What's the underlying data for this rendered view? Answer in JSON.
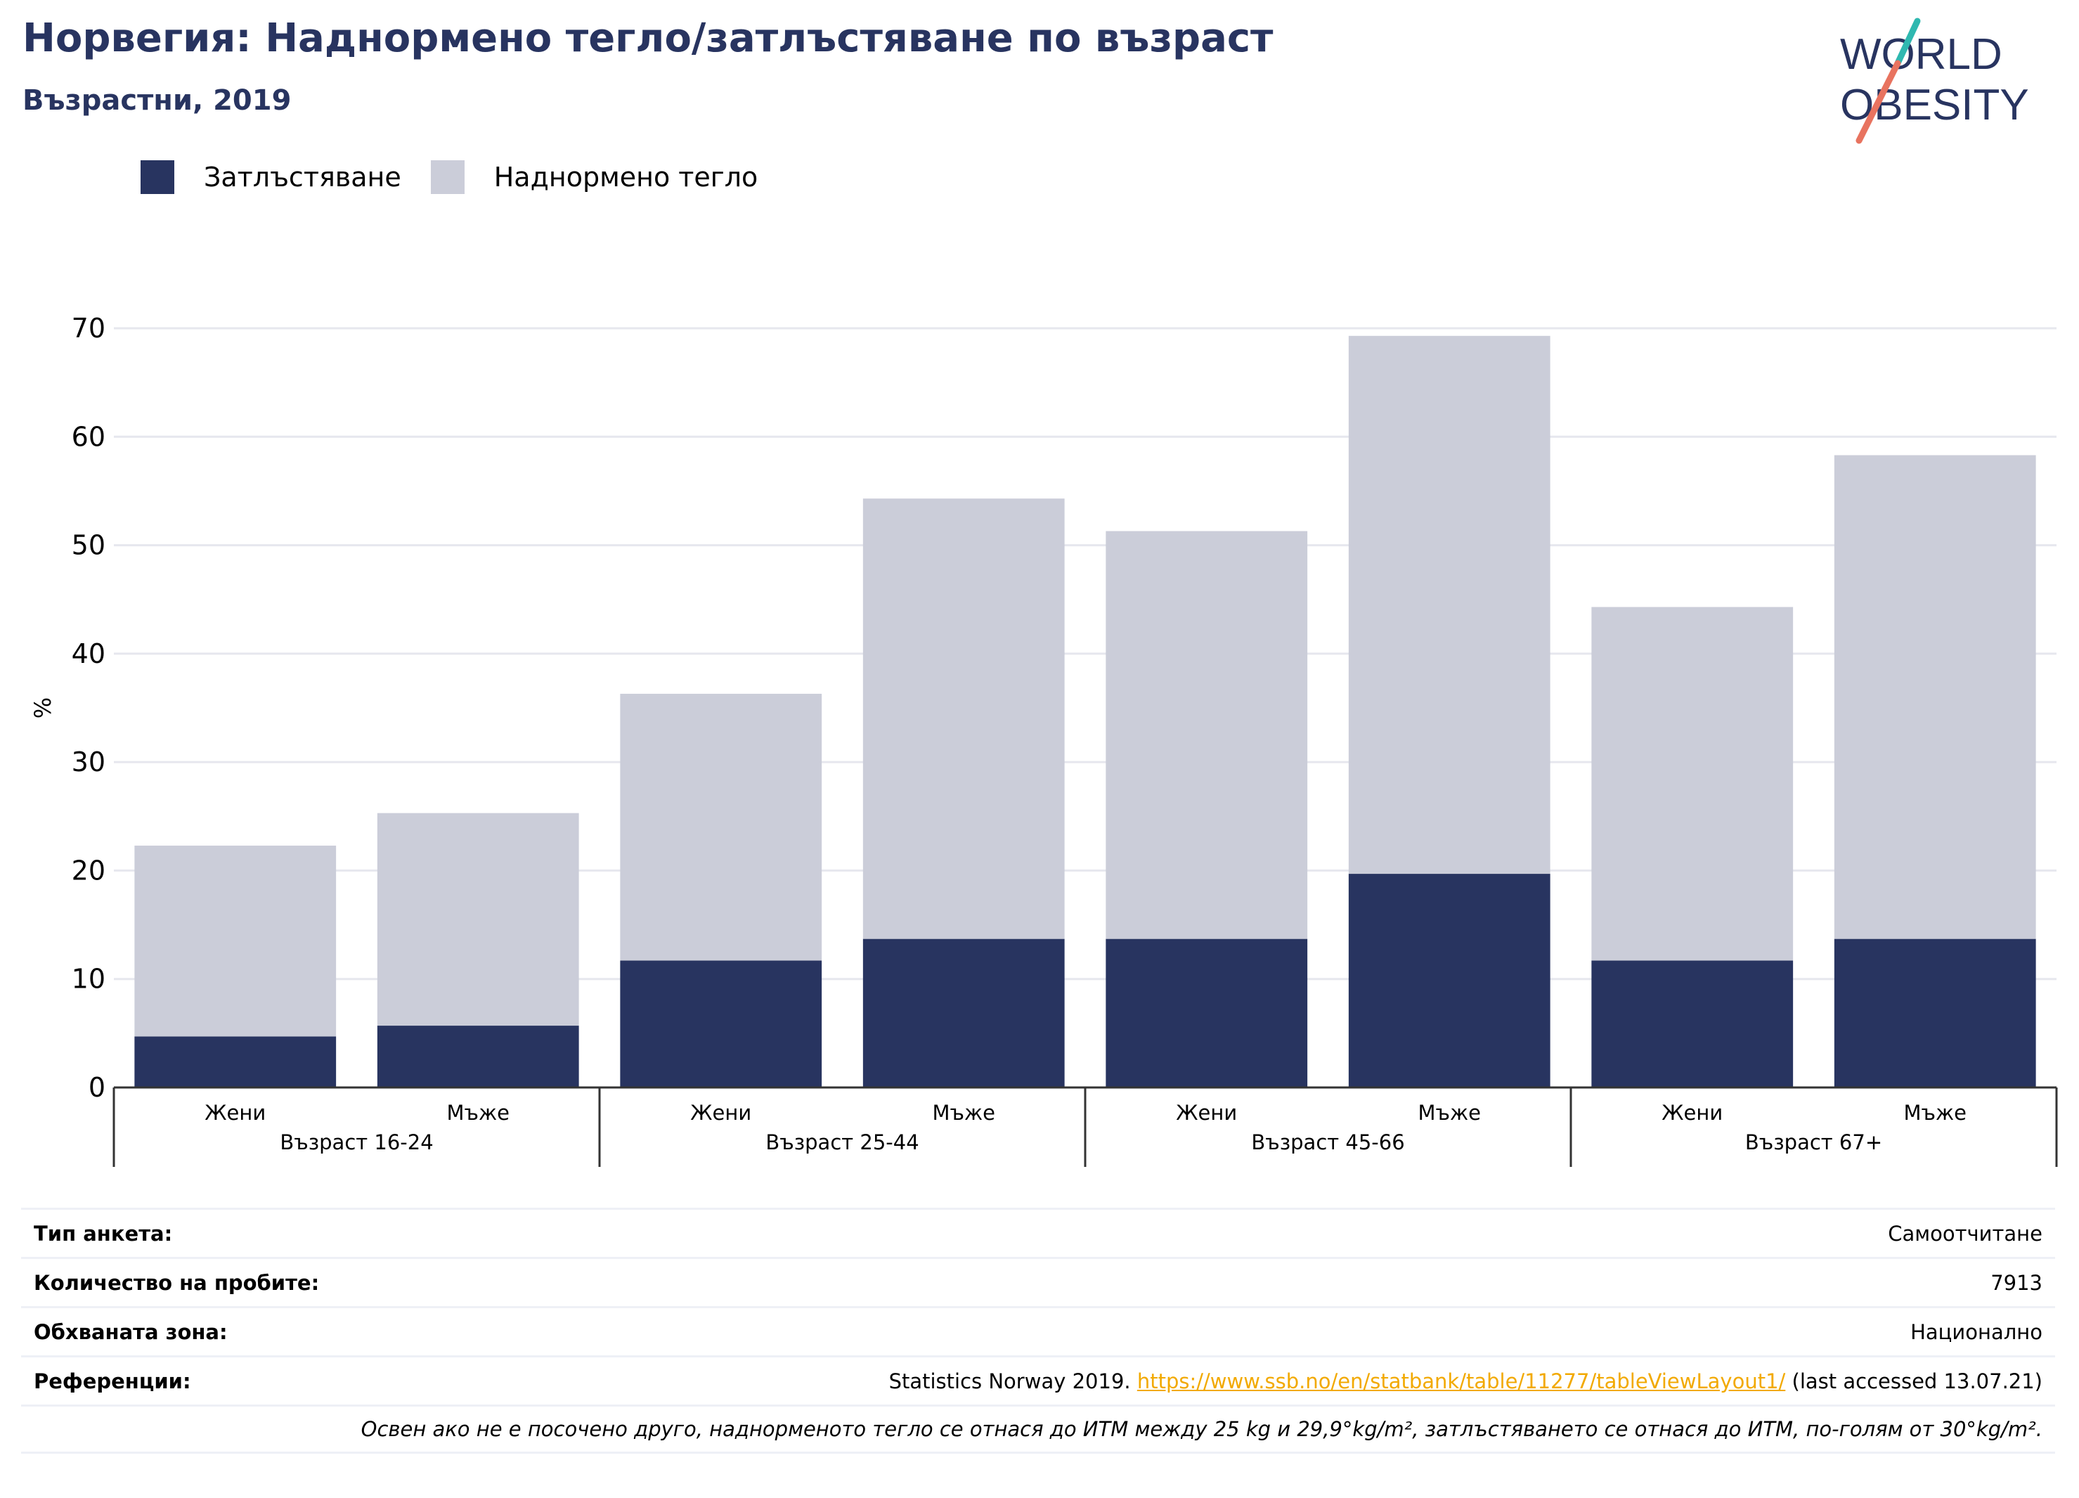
{
  "header": {
    "title": "Норвегия: Наднормено тегло/затлъстяване по възраст",
    "subtitle": "Възрастни, 2019"
  },
  "logo": {
    "line1": "WORLD",
    "line2": "OBESITY"
  },
  "legend": [
    {
      "label": "Затлъстяване",
      "color": "#283460"
    },
    {
      "label": "Наднормено тегло",
      "color": "#cbcdd9"
    }
  ],
  "chart_data": {
    "type": "bar",
    "stacked": true,
    "ylabel": "%",
    "ylim": [
      0,
      70
    ],
    "yticks": [
      0,
      10,
      20,
      30,
      40,
      50,
      60,
      70
    ],
    "grid": true,
    "legend_position": "top-left",
    "groups": [
      "Възраст 16-24",
      "Възраст 25-44",
      "Възраст 45-66",
      "Възраст 67+"
    ],
    "categories": [
      "Жени",
      "Мъже",
      "Жени",
      "Мъже",
      "Жени",
      "Мъже",
      "Жени",
      "Мъже"
    ],
    "series": [
      {
        "name": "Затлъстяване",
        "color": "#283460",
        "values": [
          4.7,
          5.7,
          11.7,
          13.7,
          13.7,
          19.7,
          11.7,
          13.7
        ]
      },
      {
        "name": "Наднормено тегло",
        "color": "#cbcdd9",
        "values": [
          17.6,
          19.6,
          24.6,
          40.6,
          37.6,
          49.6,
          32.6,
          44.6
        ]
      }
    ]
  },
  "info": {
    "survey_type_label": "Тип анкета:",
    "survey_type_value": "Самоотчитане",
    "sample_size_label": "Количество на пробите:",
    "sample_size_value": "7913",
    "area_label": "Обхваната зона:",
    "area_value": "Национално",
    "references_label": "Референции:",
    "ref_prefix": "Statistics Norway 2019.",
    "ref_link": "https://www.ssb.no/en/statbank/table/11277/tableViewLayout1/",
    "ref_suffix": "(last accessed 13.07.21)",
    "note": "Освен ако не е посочено друго, наднорменото тегло се отнася до ИТМ между 25 kg и 29,9°kg/m², затлъстяването се отнася до ИТМ, по-голям от 30°kg/m²."
  }
}
